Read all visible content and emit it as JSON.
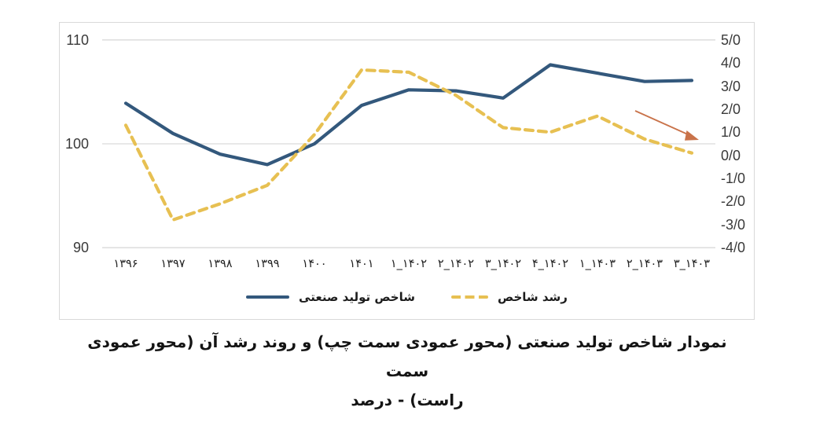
{
  "chart_data": {
    "type": "line",
    "title": "نمودار شاخص تولید صنعتی (محور عمودی سمت چپ) و روند رشد آن (محور عمودی سمت راست) - درصد",
    "caption_lines": [
      "نمودار شاخص تولید صنعتی (محور عمودی سمت چپ) و روند رشد آن (محور عمودی سمت",
      "راست) - درصد"
    ],
    "categories": [
      "۱۳۹۶",
      "۱۳۹۷",
      "۱۳۹۸",
      "۱۳۹۹",
      "۱۴۰۰",
      "۱۴۰۱",
      "۱_۱۴۰۲",
      "۲_۱۴۰۲",
      "۳_۱۴۰۲",
      "۴_۱۴۰۲",
      "۱_۱۴۰۳",
      "۲_۱۴۰۳",
      "۳_۱۴۰۳"
    ],
    "series": [
      {
        "name": "شاخص تولید صنعتی",
        "axis": "left",
        "style": "solid",
        "color": "#33587C",
        "values": [
          103.9,
          101.0,
          99.0,
          98.0,
          100.0,
          103.7,
          105.2,
          105.1,
          104.4,
          107.6,
          106.8,
          106.0,
          106.1
        ]
      },
      {
        "name": "رشد شاخص",
        "axis": "right",
        "style": "dashed",
        "color": "#E7C052",
        "values": [
          1.3,
          -2.8,
          -2.1,
          -1.3,
          0.9,
          3.7,
          3.6,
          2.6,
          1.2,
          1.0,
          1.7,
          0.7,
          0.1
        ]
      }
    ],
    "left_axis": {
      "ticks": [
        "110",
        "100",
        "90"
      ],
      "min": 90,
      "max": 110
    },
    "right_axis": {
      "ticks": [
        "5/0",
        "4/0",
        "3/0",
        "2/0",
        "1/0",
        "0/0",
        "-1/0",
        "-2/0",
        "-3/0",
        "-4/0"
      ],
      "min": -4.0,
      "max": 5.0
    },
    "grid": "horizontal-only",
    "legend_position": "bottom-center",
    "annotation": {
      "type": "downward-trend-arrow",
      "color": "#C9734A"
    },
    "colors": {
      "gridline": "#d9d9d9",
      "frame_border": "#d9d9d9",
      "tick_text": "#3a3a3a"
    }
  }
}
